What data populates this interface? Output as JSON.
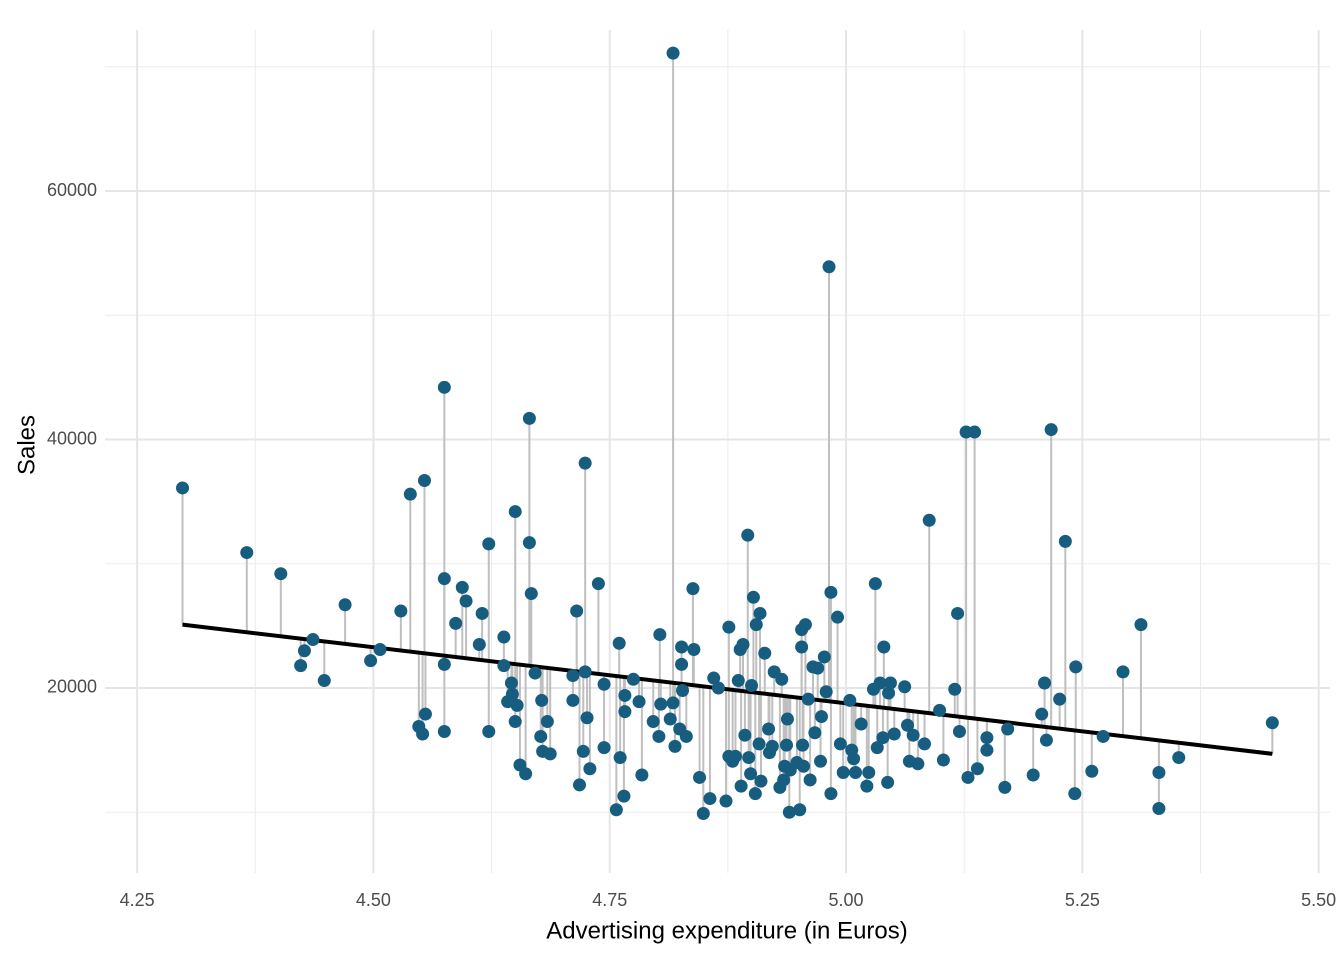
{
  "chart_data": {
    "type": "scatter",
    "x_label": "Advertising expenditure (in Euros)",
    "y_label": "Sales",
    "color": "#175d80",
    "residual_color": "#bfbfbf",
    "fit_color": "#000000",
    "grid": true,
    "xlim": [
      4.216,
      5.512
    ],
    "ylim": [
      5110,
      72960
    ],
    "xticks": [
      4.25,
      {
        "value": 4.5,
        "label": "4.50"
      },
      4.75,
      {
        "value": 5,
        "label": "5.00"
      },
      5.25,
      {
        "value": 5.5,
        "label": "5.50"
      }
    ],
    "yticks": [
      20000,
      40000,
      60000
    ],
    "x_minor_grid": [
      4.375,
      4.625,
      4.875,
      5.125,
      5.375
    ],
    "y_minor_grid": [
      10000,
      30000,
      50000,
      70000
    ],
    "fit_line": {
      "x": [
        4.298,
        5.451
      ],
      "y": [
        25100,
        14700
      ]
    },
    "x": [
      4.298,
      4.366,
      4.402,
      4.423,
      4.427,
      4.436,
      4.448,
      4.47,
      4.497,
      4.507,
      4.529,
      4.539,
      4.548,
      4.552,
      4.554,
      4.555,
      4.575,
      4.575,
      4.575,
      4.575,
      4.587,
      4.594,
      4.598,
      4.612,
      4.615,
      4.622,
      4.622,
      4.638,
      4.638,
      4.642,
      4.646,
      4.647,
      4.65,
      4.65,
      4.652,
      4.655,
      4.661,
      4.665,
      4.665,
      4.667,
      4.671,
      4.677,
      4.678,
      4.679,
      4.684,
      4.687,
      4.711,
      4.711,
      4.715,
      4.718,
      4.722,
      4.724,
      4.724,
      4.726,
      4.729,
      4.738,
      4.744,
      4.744,
      4.757,
      4.76,
      4.761,
      4.765,
      4.766,
      4.766,
      4.775,
      4.781,
      4.784,
      4.796,
      4.802,
      4.803,
      4.804,
      4.814,
      4.817,
      4.817,
      4.819,
      4.824,
      4.826,
      4.826,
      4.827,
      4.831,
      4.838,
      4.839,
      4.845,
      4.849,
      4.856,
      4.86,
      4.865,
      4.873,
      4.876,
      4.876,
      4.88,
      4.883,
      4.886,
      4.888,
      4.889,
      4.891,
      4.893,
      4.896,
      4.897,
      4.899,
      4.9,
      4.902,
      4.904,
      4.905,
      4.908,
      4.909,
      4.91,
      4.914,
      4.918,
      4.919,
      4.922,
      4.924,
      4.93,
      4.932,
      4.934,
      4.935,
      4.937,
      4.938,
      4.94,
      4.941,
      4.948,
      4.951,
      4.953,
      4.953,
      4.954,
      4.955,
      4.957,
      4.96,
      4.962,
      4.965,
      4.967,
      4.97,
      4.973,
      4.974,
      4.977,
      4.979,
      4.982,
      4.984,
      4.984,
      4.991,
      4.994,
      4.997,
      5.004,
      5.006,
      5.008,
      5.01,
      5.016,
      5.022,
      5.024,
      5.029,
      5.031,
      5.033,
      5.036,
      5.039,
      5.04,
      5.044,
      5.045,
      5.047,
      5.051,
      5.062,
      5.065,
      5.067,
      5.071,
      5.076,
      5.083,
      5.088,
      5.099,
      5.103,
      5.115,
      5.118,
      5.12,
      5.127,
      5.129,
      5.136,
      5.139,
      5.149,
      5.149,
      5.168,
      5.171,
      5.198,
      5.207,
      5.21,
      5.212,
      5.217,
      5.226,
      5.232,
      5.242,
      5.243,
      5.26,
      5.272,
      5.293,
      5.312,
      5.331,
      5.331,
      5.352,
      5.451
    ],
    "y": [
      36100,
      30900,
      29200,
      21800,
      23000,
      23900,
      20600,
      26700,
      22200,
      23100,
      26200,
      35600,
      16900,
      16300,
      36700,
      17900,
      44200,
      28800,
      21900,
      16500,
      25200,
      28100,
      27000,
      23500,
      26000,
      31600,
      16500,
      24100,
      21800,
      18900,
      20400,
      19500,
      34200,
      17300,
      18600,
      13800,
      13100,
      41700,
      31700,
      27600,
      21200,
      16100,
      19000,
      14900,
      17300,
      14700,
      21000,
      19000,
      26200,
      12200,
      14900,
      38100,
      21300,
      17600,
      13500,
      28400,
      20300,
      15200,
      10200,
      23600,
      14400,
      11300,
      19400,
      18100,
      20700,
      18900,
      13000,
      17300,
      16100,
      24300,
      18700,
      17500,
      71100,
      18800,
      15300,
      16700,
      23300,
      21900,
      19800,
      16100,
      28000,
      23100,
      12800,
      9900,
      11100,
      20800,
      20000,
      10900,
      24900,
      14500,
      14100,
      14500,
      20600,
      23100,
      12100,
      23500,
      16200,
      32300,
      14400,
      13100,
      20200,
      27300,
      11500,
      25100,
      15500,
      26000,
      12500,
      22800,
      16700,
      14800,
      15300,
      21300,
      12000,
      20700,
      12600,
      13700,
      15400,
      17500,
      10000,
      13400,
      14000,
      10200,
      23300,
      24700,
      15400,
      13700,
      25100,
      19100,
      12600,
      21700,
      16400,
      21600,
      14100,
      17700,
      22500,
      19700,
      53900,
      27700,
      11500,
      25700,
      15500,
      13200,
      19000,
      15000,
      14300,
      13200,
      17100,
      12100,
      13200,
      19900,
      28400,
      15200,
      20400,
      16000,
      23300,
      12400,
      19600,
      20400,
      16300,
      20100,
      17000,
      14100,
      16200,
      13900,
      15500,
      33500,
      18200,
      14200,
      19900,
      26000,
      16500,
      40600,
      12800,
      40600,
      13500,
      16000,
      15000,
      12000,
      16700,
      13000,
      17900,
      20400,
      15800,
      40800,
      19100,
      31800,
      11500,
      21700,
      13300,
      16100,
      21300,
      25100,
      13200,
      10300,
      14400,
      17200
    ]
  }
}
